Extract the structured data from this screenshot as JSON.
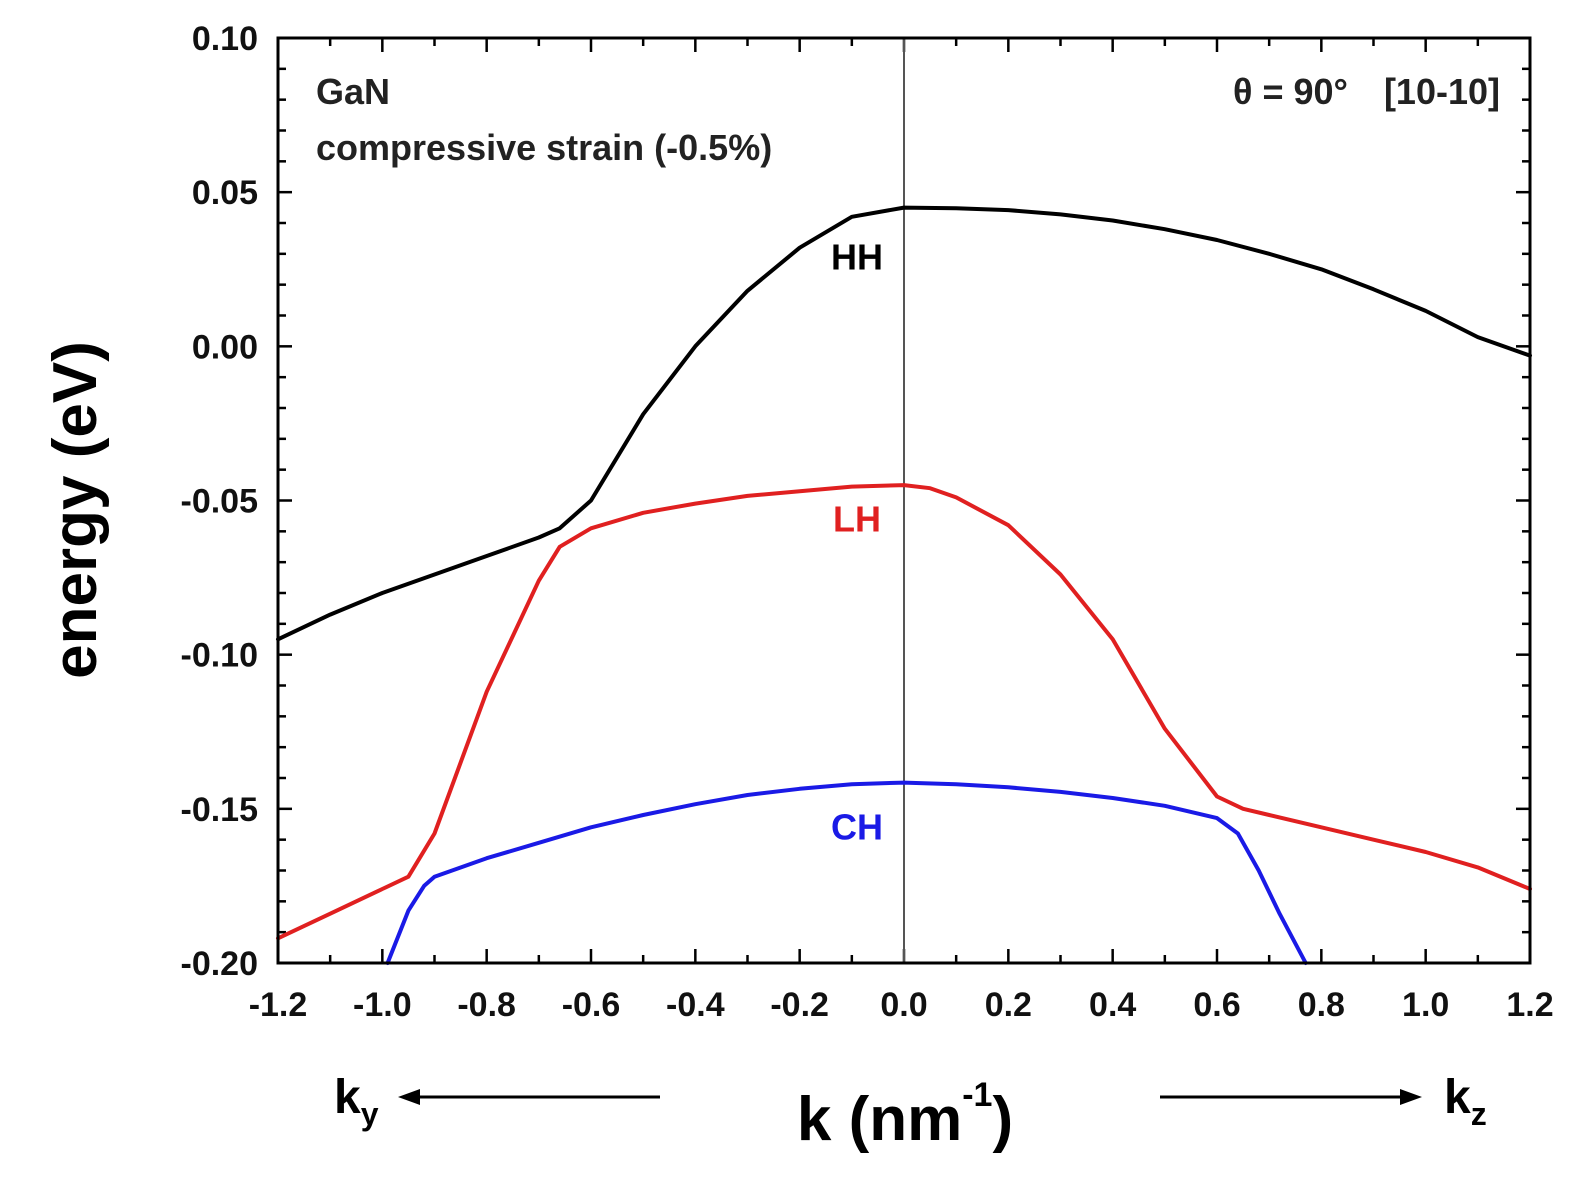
{
  "chart_data": {
    "type": "line",
    "xlabel": "k (nm",
    "xlabel_sup": "-1",
    "xlabel_close": ")",
    "ylabel": "energy (eV)",
    "xlim": [
      -1.2,
      1.2
    ],
    "ylim": [
      -0.2,
      0.1
    ],
    "xticks": [
      "-1.2",
      "-1.0",
      "-0.8",
      "-0.6",
      "-0.4",
      "-0.2",
      "0.0",
      "0.2",
      "0.4",
      "0.6",
      "0.8",
      "1.0",
      "1.2"
    ],
    "yticks": [
      "0.10",
      "0.05",
      "0.00",
      "-0.05",
      "-0.10",
      "-0.15",
      "-0.20"
    ],
    "annotations": {
      "material": "GaN",
      "strain": "compressive strain (-0.5%)",
      "theta_prefix": "θ = 90°",
      "direction": "[10-10]"
    },
    "direction_labels": {
      "left": {
        "main": "k",
        "sub": "y"
      },
      "right": {
        "main": "k",
        "sub": "z"
      }
    },
    "series": [
      {
        "name": "HH",
        "color": "#000000",
        "x": [
          -1.2,
          -1.1,
          -1.0,
          -0.9,
          -0.8,
          -0.7,
          -0.66,
          -0.6,
          -0.5,
          -0.4,
          -0.3,
          -0.2,
          -0.1,
          0.0,
          0.1,
          0.2,
          0.3,
          0.4,
          0.5,
          0.6,
          0.7,
          0.8,
          0.9,
          1.0,
          1.1,
          1.2
        ],
        "y": [
          -0.095,
          -0.087,
          -0.08,
          -0.074,
          -0.068,
          -0.062,
          -0.059,
          -0.05,
          -0.022,
          0.0,
          0.018,
          0.032,
          0.042,
          0.045,
          0.0448,
          0.0442,
          0.0428,
          0.0408,
          0.038,
          0.0345,
          0.03,
          0.025,
          0.0185,
          0.0115,
          0.003,
          -0.003
        ]
      },
      {
        "name": "LH",
        "color": "#e02020",
        "x": [
          -1.2,
          -1.1,
          -1.0,
          -0.95,
          -0.9,
          -0.8,
          -0.7,
          -0.66,
          -0.6,
          -0.5,
          -0.4,
          -0.3,
          -0.2,
          -0.1,
          0.0,
          0.05,
          0.1,
          0.2,
          0.3,
          0.4,
          0.5,
          0.6,
          0.65,
          0.7,
          0.8,
          0.9,
          1.0,
          1.1,
          1.2
        ],
        "y": [
          -0.192,
          -0.184,
          -0.176,
          -0.172,
          -0.158,
          -0.112,
          -0.076,
          -0.065,
          -0.059,
          -0.054,
          -0.051,
          -0.0485,
          -0.047,
          -0.0455,
          -0.045,
          -0.046,
          -0.049,
          -0.058,
          -0.074,
          -0.095,
          -0.124,
          -0.146,
          -0.15,
          -0.152,
          -0.156,
          -0.16,
          -0.164,
          -0.169,
          -0.176
        ]
      },
      {
        "name": "CH",
        "color": "#1a1ae6",
        "x": [
          -0.99,
          -0.95,
          -0.92,
          -0.9,
          -0.8,
          -0.7,
          -0.6,
          -0.5,
          -0.4,
          -0.3,
          -0.2,
          -0.1,
          0.0,
          0.1,
          0.2,
          0.3,
          0.4,
          0.5,
          0.6,
          0.64,
          0.68,
          0.72,
          0.77
        ],
        "y": [
          -0.2,
          -0.183,
          -0.175,
          -0.172,
          -0.166,
          -0.161,
          -0.156,
          -0.152,
          -0.1485,
          -0.1455,
          -0.1435,
          -0.142,
          -0.1415,
          -0.142,
          -0.143,
          -0.1445,
          -0.1465,
          -0.149,
          -0.153,
          -0.158,
          -0.17,
          -0.184,
          -0.2
        ]
      }
    ],
    "curve_label_positions": [
      {
        "name": "HH",
        "x": -0.09,
        "y": 0.025
      },
      {
        "name": "LH",
        "x": -0.09,
        "y": -0.06
      },
      {
        "name": "CH",
        "x": -0.09,
        "y": -0.16
      }
    ],
    "vertical_line_x": 0.0,
    "grid": false
  }
}
